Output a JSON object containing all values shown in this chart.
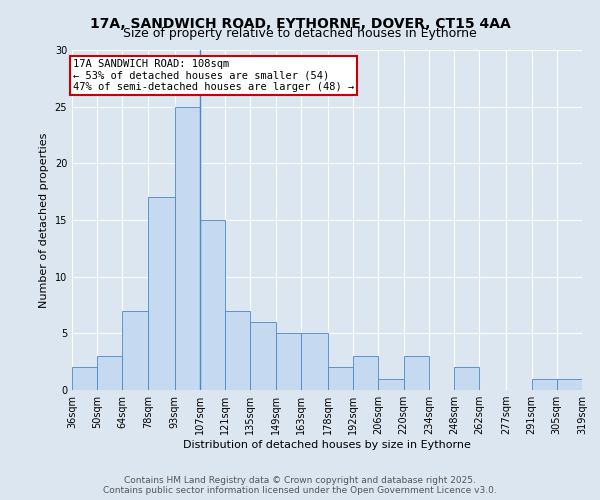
{
  "title_line1": "17A, SANDWICH ROAD, EYTHORNE, DOVER, CT15 4AA",
  "title_line2": "Size of property relative to detached houses in Eythorne",
  "xlabel": "Distribution of detached houses by size in Eythorne",
  "ylabel": "Number of detached properties",
  "bin_edges": [
    36,
    50,
    64,
    78,
    93,
    107,
    121,
    135,
    149,
    163,
    178,
    192,
    206,
    220,
    234,
    248,
    262,
    277,
    291,
    305,
    319
  ],
  "bin_labels": [
    "36sqm",
    "50sqm",
    "64sqm",
    "78sqm",
    "93sqm",
    "107sqm",
    "121sqm",
    "135sqm",
    "149sqm",
    "163sqm",
    "178sqm",
    "192sqm",
    "206sqm",
    "220sqm",
    "234sqm",
    "248sqm",
    "262sqm",
    "277sqm",
    "291sqm",
    "305sqm",
    "319sqm"
  ],
  "counts": [
    2,
    3,
    7,
    17,
    25,
    15,
    7,
    6,
    5,
    5,
    2,
    3,
    1,
    3,
    0,
    2,
    0,
    0,
    1,
    1
  ],
  "bar_color": "#c5d9f0",
  "bar_edge_color": "#4a86c8",
  "property_line_x": 107,
  "property_line_color": "#4a86c8",
  "annotation_text": "17A SANDWICH ROAD: 108sqm\n← 53% of detached houses are smaller (54)\n47% of semi-detached houses are larger (48) →",
  "annotation_box_facecolor": "#ffffff",
  "annotation_box_edgecolor": "#cc0000",
  "ylim": [
    0,
    30
  ],
  "yticks": [
    0,
    5,
    10,
    15,
    20,
    25,
    30
  ],
  "fig_facecolor": "#dce6f1",
  "ax_facecolor": "#dce6f1",
  "grid_color": "#ffffff",
  "title1_fontsize": 10,
  "title2_fontsize": 9,
  "xlabel_fontsize": 8,
  "ylabel_fontsize": 8,
  "tick_fontsize": 7,
  "annotation_fontsize": 7.5,
  "footer_fontsize": 6.5,
  "footer_text": "Contains HM Land Registry data © Crown copyright and database right 2025.\nContains public sector information licensed under the Open Government Licence v3.0."
}
